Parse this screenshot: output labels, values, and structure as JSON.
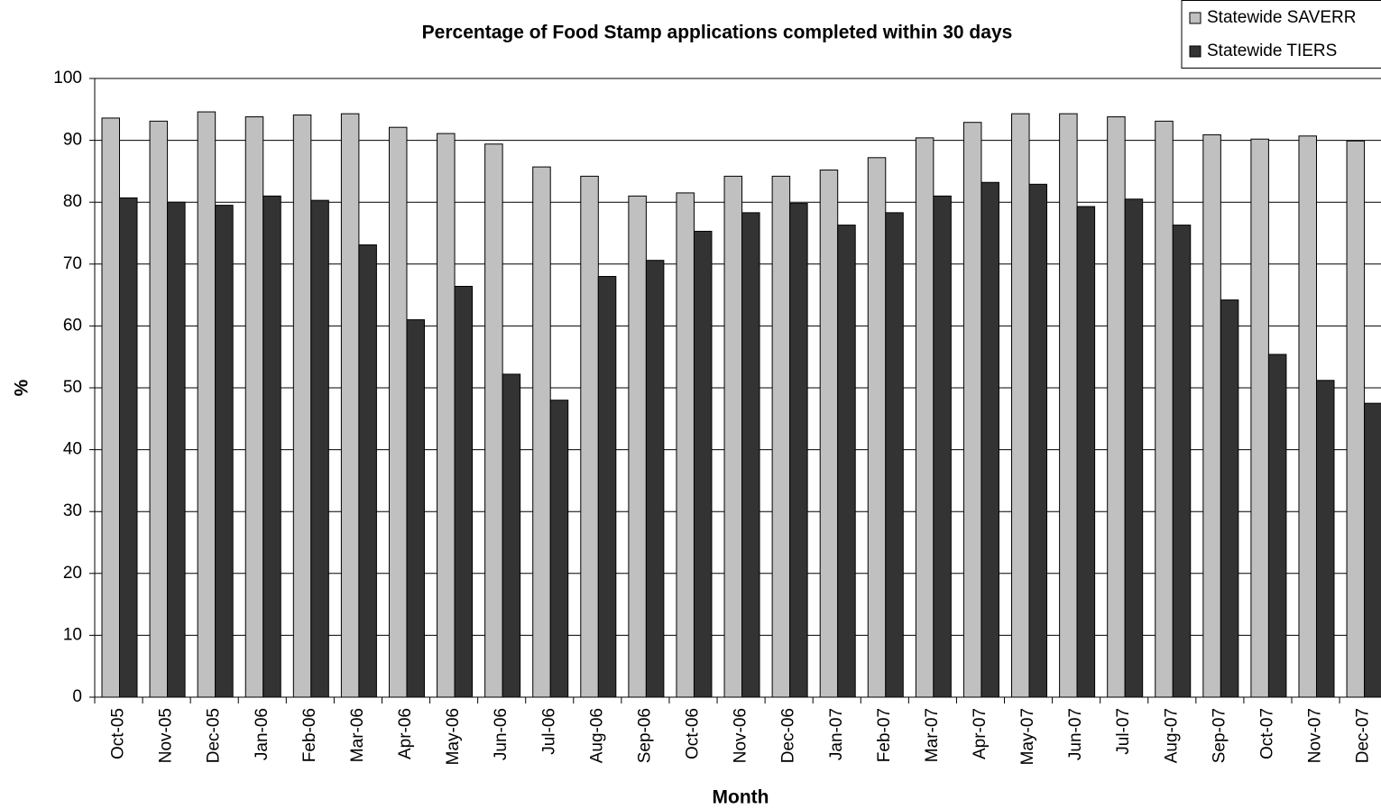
{
  "chart_data": {
    "type": "bar",
    "title": "Percentage of Food Stamp applications completed within 30 days",
    "x_label": "Month",
    "y_label": "%",
    "categories": [
      "Oct-05",
      "Nov-05",
      "Dec-05",
      "Jan-06",
      "Feb-06",
      "Mar-06",
      "Apr-06",
      "May-06",
      "Jun-06",
      "Jul-06",
      "Aug-06",
      "Sep-06",
      "Oct-06",
      "Nov-06",
      "Dec-06",
      "Jan-07",
      "Feb-07",
      "Mar-07",
      "Apr-07",
      "May-07",
      "Jun-07",
      "Jul-07",
      "Aug-07",
      "Sep-07",
      "Oct-07",
      "Nov-07",
      "Dec-07"
    ],
    "series": [
      {
        "name": "Statewide SAVERR",
        "color": "#c0c0c0",
        "values": [
          93.6,
          93.1,
          94.6,
          93.8,
          94.1,
          94.3,
          92.1,
          91.1,
          89.4,
          85.7,
          84.2,
          81.0,
          81.5,
          84.2,
          84.2,
          85.2,
          87.2,
          90.4,
          92.9,
          94.3,
          94.3,
          93.8,
          93.1,
          90.9,
          90.2,
          90.7,
          89.9
        ]
      },
      {
        "name": "Statewide TIERS",
        "color": "#333333",
        "values": [
          80.7,
          80.0,
          79.5,
          81.0,
          80.3,
          73.1,
          61.0,
          66.4,
          52.2,
          48.0,
          68.0,
          70.6,
          75.3,
          78.3,
          79.8,
          76.3,
          78.3,
          81.0,
          83.2,
          82.9,
          79.3,
          80.5,
          76.3,
          64.2,
          55.4,
          51.2,
          47.5
        ]
      }
    ],
    "ylim": [
      0,
      100
    ],
    "yticks": [
      0,
      10,
      20,
      30,
      40,
      50,
      60,
      70,
      80,
      90,
      100
    ],
    "grid": true,
    "legend": "top-right"
  }
}
